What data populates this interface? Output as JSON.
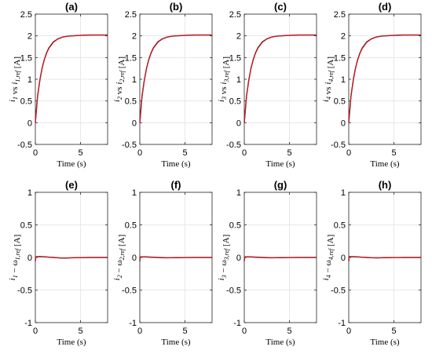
{
  "figure": {
    "background": "#ffffff",
    "colors": {
      "reference": "#111111",
      "measured": "#e0141e",
      "grid": "#e3e3e3"
    }
  },
  "chart_data": [
    {
      "type": "line",
      "title": "(a)",
      "xlabel": "Time (s)",
      "ylabel": {
        "p1": "i",
        "s1": "1",
        "p2": " vs ",
        "p3": "i",
        "s2": "1,ref",
        "p4": " [A]"
      },
      "xlim": [
        0,
        8
      ],
      "ylim": [
        -0.5,
        2.5
      ],
      "xticks": [
        0,
        5
      ],
      "yticks": [
        -0.5,
        0,
        0.5,
        1,
        1.5,
        2,
        2.5
      ],
      "ytick_labels": [
        "-0.5",
        "0",
        "0.5",
        "1",
        "1.5",
        "2",
        "2.5"
      ],
      "grid": true,
      "series": [
        {
          "role": "reference",
          "x": [
            0,
            0.25,
            0.5,
            0.75,
            1,
            1.25,
            1.5,
            2,
            2.5,
            3,
            3.5,
            4,
            5,
            6,
            7,
            8
          ],
          "y": [
            0,
            0.62,
            0.98,
            1.26,
            1.46,
            1.61,
            1.72,
            1.86,
            1.93,
            1.97,
            1.99,
            2.0,
            2.01,
            2.02,
            2.02,
            2.02
          ]
        },
        {
          "role": "measured",
          "x": [
            0,
            0.25,
            0.5,
            0.75,
            1,
            1.25,
            1.5,
            2,
            2.5,
            3,
            3.5,
            4,
            5,
            6,
            7,
            8
          ],
          "y": [
            0,
            0.6,
            0.97,
            1.25,
            1.45,
            1.6,
            1.71,
            1.85,
            1.93,
            1.97,
            1.99,
            2.0,
            2.01,
            2.02,
            2.02,
            2.02
          ]
        }
      ]
    },
    {
      "type": "line",
      "title": "(b)",
      "xlabel": "Time (s)",
      "ylabel": {
        "p1": "i",
        "s1": "2",
        "p2": " vs ",
        "p3": "i",
        "s2": "2,ref",
        "p4": " [A]"
      },
      "xlim": [
        0,
        8
      ],
      "ylim": [
        -0.5,
        2.5
      ],
      "xticks": [
        0,
        5
      ],
      "yticks": [
        -0.5,
        0,
        0.5,
        1,
        1.5,
        2,
        2.5
      ],
      "ytick_labels": [
        "-0.5",
        "0",
        "0.5",
        "1",
        "1.5",
        "2",
        "2.5"
      ],
      "grid": true,
      "series": [
        {
          "role": "reference",
          "x": [
            0,
            0.25,
            0.5,
            0.75,
            1,
            1.25,
            1.5,
            2,
            2.5,
            3,
            3.5,
            4,
            5,
            6,
            7,
            8
          ],
          "y": [
            0,
            0.62,
            0.98,
            1.26,
            1.46,
            1.61,
            1.72,
            1.86,
            1.93,
            1.97,
            1.99,
            2.0,
            2.01,
            2.02,
            2.02,
            2.02
          ]
        },
        {
          "role": "measured",
          "x": [
            0,
            0.25,
            0.5,
            0.75,
            1,
            1.25,
            1.5,
            2,
            2.5,
            3,
            3.5,
            4,
            5,
            6,
            7,
            8
          ],
          "y": [
            0,
            0.6,
            0.97,
            1.25,
            1.45,
            1.6,
            1.71,
            1.85,
            1.93,
            1.97,
            1.99,
            2.0,
            2.01,
            2.02,
            2.02,
            2.02
          ]
        }
      ]
    },
    {
      "type": "line",
      "title": "(c)",
      "xlabel": "Time (s)",
      "ylabel": {
        "p1": "i",
        "s1": "3",
        "p2": " vs ",
        "p3": "i",
        "s2": "3,ref",
        "p4": " [A]"
      },
      "xlim": [
        0,
        8
      ],
      "ylim": [
        -0.5,
        2.5
      ],
      "xticks": [
        0,
        5
      ],
      "yticks": [
        -0.5,
        0,
        0.5,
        1,
        1.5,
        2,
        2.5
      ],
      "ytick_labels": [
        "-0.5",
        "0",
        "0.5",
        "1",
        "1.5",
        "2",
        "2.5"
      ],
      "grid": true,
      "series": [
        {
          "role": "reference",
          "x": [
            0,
            0.25,
            0.5,
            0.75,
            1,
            1.25,
            1.5,
            2,
            2.5,
            3,
            3.5,
            4,
            5,
            6,
            7,
            8
          ],
          "y": [
            0,
            0.62,
            0.98,
            1.26,
            1.46,
            1.61,
            1.72,
            1.86,
            1.93,
            1.97,
            1.99,
            2.0,
            2.01,
            2.02,
            2.02,
            2.02
          ]
        },
        {
          "role": "measured",
          "x": [
            0,
            0.25,
            0.5,
            0.75,
            1,
            1.25,
            1.5,
            2,
            2.5,
            3,
            3.5,
            4,
            5,
            6,
            7,
            8
          ],
          "y": [
            0,
            0.6,
            0.97,
            1.25,
            1.45,
            1.6,
            1.71,
            1.85,
            1.93,
            1.97,
            1.99,
            2.0,
            2.01,
            2.02,
            2.02,
            2.02
          ]
        }
      ]
    },
    {
      "type": "line",
      "title": "(d)",
      "xlabel": "Time (s)",
      "ylabel": {
        "p1": "i",
        "s1": "4",
        "p2": " vs ",
        "p3": "i",
        "s2": "4,ref",
        "p4": " [A]"
      },
      "xlim": [
        0,
        8
      ],
      "ylim": [
        -0.5,
        2.5
      ],
      "xticks": [
        0,
        5
      ],
      "yticks": [
        -0.5,
        0,
        0.5,
        1,
        1.5,
        2,
        2.5
      ],
      "ytick_labels": [
        "-0.5",
        "0",
        "0.5",
        "1",
        "1.5",
        "2",
        "2.5"
      ],
      "grid": true,
      "series": [
        {
          "role": "reference",
          "x": [
            0,
            0.25,
            0.5,
            0.75,
            1,
            1.25,
            1.5,
            2,
            2.5,
            3,
            3.5,
            4,
            5,
            6,
            7,
            8
          ],
          "y": [
            0,
            0.62,
            0.98,
            1.26,
            1.46,
            1.61,
            1.72,
            1.86,
            1.93,
            1.97,
            1.99,
            2.0,
            2.01,
            2.02,
            2.02,
            2.02
          ]
        },
        {
          "role": "measured",
          "x": [
            0,
            0.25,
            0.5,
            0.75,
            1,
            1.25,
            1.5,
            2,
            2.5,
            3,
            3.5,
            4,
            5,
            6,
            7,
            8
          ],
          "y": [
            0,
            0.6,
            0.97,
            1.25,
            1.45,
            1.6,
            1.71,
            1.85,
            1.93,
            1.97,
            1.99,
            2.0,
            2.01,
            2.02,
            2.02,
            2.02
          ]
        }
      ]
    },
    {
      "type": "line",
      "title": "(e)",
      "xlabel": "Time (s)",
      "ylabel": {
        "p1": "i",
        "s1": "1",
        "p2": " − ω",
        "p3": "",
        "s2": "1,ref",
        "p4": " [A]"
      },
      "xlim": [
        0,
        8
      ],
      "ylim": [
        -1,
        1
      ],
      "xticks": [
        0,
        5
      ],
      "yticks": [
        -1,
        -0.5,
        0,
        0.5,
        1
      ],
      "ytick_labels": [
        "-1",
        "-0.5",
        "0",
        "0.5",
        "1"
      ],
      "grid": true,
      "series": [
        {
          "role": "error",
          "x": [
            0,
            0.05,
            0.5,
            1,
            1.5,
            2,
            2.5,
            3,
            3.5,
            4,
            5,
            6,
            7,
            8
          ],
          "y": [
            -0.06,
            0.01,
            0.015,
            0.01,
            0.005,
            0.0,
            -0.005,
            -0.01,
            -0.008,
            -0.005,
            -0.002,
            0.0,
            0.0,
            0.0
          ]
        }
      ]
    },
    {
      "type": "line",
      "title": "(f)",
      "xlabel": "Time (s)",
      "ylabel": {
        "p1": "i",
        "s1": "2",
        "p2": " − ω",
        "p3": "",
        "s2": "2,ref",
        "p4": " [A]"
      },
      "xlim": [
        0,
        8
      ],
      "ylim": [
        -1,
        1
      ],
      "xticks": [
        0,
        5
      ],
      "yticks": [
        -1,
        -0.5,
        0,
        0.5,
        1
      ],
      "ytick_labels": [
        "-1",
        "-0.5",
        "0",
        "0.5",
        "1"
      ],
      "grid": true,
      "series": [
        {
          "role": "error",
          "x": [
            0,
            0.05,
            0.5,
            1,
            1.5,
            2,
            2.5,
            3,
            3.5,
            4,
            5,
            6,
            7,
            8
          ],
          "y": [
            -0.06,
            0.01,
            0.01,
            0.006,
            0.003,
            0.0,
            -0.003,
            -0.005,
            -0.004,
            -0.003,
            -0.001,
            0.0,
            0.0,
            0.0
          ]
        }
      ]
    },
    {
      "type": "line",
      "title": "(g)",
      "xlabel": "Time (s)",
      "ylabel": {
        "p1": "i",
        "s1": "3",
        "p2": " − ω",
        "p3": "",
        "s2": "3,ref",
        "p4": " [A]"
      },
      "xlim": [
        0,
        8
      ],
      "ylim": [
        -1,
        1
      ],
      "xticks": [
        0,
        5
      ],
      "yticks": [
        -1,
        -0.5,
        0,
        0.5,
        1
      ],
      "ytick_labels": [
        "-1",
        "-0.5",
        "0",
        "0.5",
        "1"
      ],
      "grid": true,
      "series": [
        {
          "role": "error",
          "x": [
            0,
            0.05,
            0.5,
            1,
            1.5,
            2,
            2.5,
            3,
            3.5,
            4,
            5,
            6,
            7,
            8
          ],
          "y": [
            -0.06,
            0.008,
            0.01,
            0.006,
            0.003,
            0.0,
            -0.003,
            -0.005,
            -0.004,
            -0.003,
            -0.001,
            0.0,
            0.0,
            0.0
          ]
        }
      ]
    },
    {
      "type": "line",
      "title": "(h)",
      "xlabel": "Time (s)",
      "ylabel": {
        "p1": "i",
        "s1": "4",
        "p2": " − ω",
        "p3": "",
        "s2": "4,ref",
        "p4": " [A]"
      },
      "xlim": [
        0,
        8
      ],
      "ylim": [
        -1,
        1
      ],
      "xticks": [
        0,
        5
      ],
      "yticks": [
        -1,
        -0.5,
        0,
        0.5,
        1
      ],
      "ytick_labels": [
        "-1",
        "-0.5",
        "0",
        "0.5",
        "1"
      ],
      "grid": true,
      "series": [
        {
          "role": "error",
          "x": [
            0,
            0.05,
            0.5,
            1,
            1.5,
            2,
            2.5,
            3,
            3.5,
            4,
            5,
            6,
            7,
            8
          ],
          "y": [
            -0.06,
            0.012,
            0.012,
            0.008,
            0.004,
            0.0,
            -0.004,
            -0.006,
            -0.005,
            -0.003,
            -0.001,
            0.0,
            0.0,
            0.0
          ]
        }
      ]
    }
  ]
}
